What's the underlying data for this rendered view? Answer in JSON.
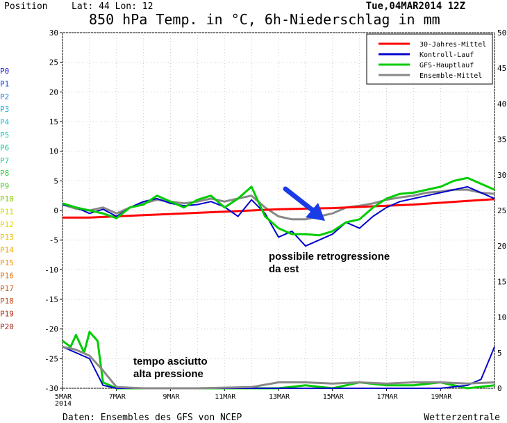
{
  "header": {
    "position_label": "Position",
    "lat_lon": "Lat: 44 Lon: 12",
    "run": "Tue,04MAR2014 12Z",
    "title": "850 hPa Temp. in °C, 6h-Niederschlag in mm"
  },
  "footer": {
    "source": "Daten: Ensembles des GFS von NCEP",
    "brand": "Wetterzentrale"
  },
  "annotations": {
    "retro_1": "possibile retrogressione",
    "retro_2": "da est",
    "dry_1": "tempo asciutto",
    "dry_2": "alta pressione"
  },
  "colors": {
    "climate": "#ff0000",
    "control": "#0000cc",
    "gfs_main": "#00cc00",
    "ensemble_mean": "#888888",
    "arrow": "#1a3ce6"
  },
  "chart_data": {
    "type": "line",
    "x_labels": [
      "5MAR",
      "7MAR",
      "9MAR",
      "11MAR",
      "13MAR",
      "15MAR",
      "17MAR",
      "19MAR"
    ],
    "x_sublabel": "2014",
    "x_range_days": [
      0,
      16
    ],
    "y_left_label_unit": "°C",
    "y_left_range": [
      -30,
      30
    ],
    "y_left_ticks": [
      30,
      25,
      20,
      15,
      10,
      5,
      0,
      -5,
      -10,
      -15,
      -20,
      -25,
      -30
    ],
    "y_right_range": [
      0,
      50
    ],
    "y_right_ticks": [
      50,
      45,
      40,
      35,
      30,
      25,
      20,
      15,
      10,
      5,
      0
    ],
    "member_labels": [
      "P0",
      "P1",
      "P2",
      "P3",
      "P4",
      "P5",
      "P6",
      "P7",
      "P8",
      "P9",
      "P10",
      "P11",
      "P12",
      "P13",
      "P14",
      "P15",
      "P16",
      "P17",
      "P18",
      "P19",
      "P20"
    ],
    "member_colors": [
      "#2020d0",
      "#2050e0",
      "#2080e8",
      "#20a8e0",
      "#20c0d8",
      "#20d0c0",
      "#20c8a0",
      "#20d080",
      "#30d040",
      "#50d020",
      "#80d000",
      "#d8d800",
      "#e8d000",
      "#f0c000",
      "#f0a800",
      "#f09000",
      "#e07820",
      "#d06020",
      "#c04818",
      "#b03010",
      "#a02010"
    ],
    "legend": [
      {
        "label": "30-Jahres-Mittel",
        "color": "#ff0000"
      },
      {
        "label": "Kontroll-Lauf",
        "color": "#0000cc"
      },
      {
        "label": "GFS-Hauptlauf",
        "color": "#00cc00"
      },
      {
        "label": "Ensemble-Mittel",
        "color": "#888888"
      }
    ],
    "series": [
      {
        "name": "30-Jahres-Mittel",
        "x": [
          0,
          1,
          2,
          3,
          4,
          5,
          6,
          7,
          8,
          9,
          10,
          11,
          12,
          13,
          14,
          15,
          16
        ],
        "y": [
          -1.2,
          -1.2,
          -1.0,
          -0.8,
          -0.6,
          -0.4,
          -0.2,
          0,
          0.2,
          0.3,
          0.4,
          0.6,
          0.8,
          1.0,
          1.3,
          1.6,
          1.9
        ]
      },
      {
        "name": "Kontroll-Lauf",
        "x": [
          0,
          0.5,
          1,
          1.5,
          2,
          2.5,
          3,
          3.5,
          4,
          4.5,
          5,
          5.5,
          6,
          6.5,
          7,
          7.5,
          8,
          8.5,
          9,
          9.5,
          10,
          10.5,
          11,
          11.5,
          12,
          12.5,
          13,
          13.5,
          14,
          14.5,
          15,
          15.5,
          16
        ],
        "y": [
          1.0,
          0.5,
          -0.5,
          0.2,
          -1.0,
          0.5,
          1.5,
          2.0,
          1.2,
          0.8,
          1.0,
          1.5,
          0.6,
          -1.0,
          1.8,
          -0.5,
          -4.5,
          -3.5,
          -6.0,
          -5.0,
          -4.0,
          -2.0,
          -3.0,
          -1.0,
          0.5,
          1.5,
          2.0,
          2.5,
          3.0,
          3.5,
          4.0,
          3.0,
          2.0
        ]
      },
      {
        "name": "GFS-Hauptlauf",
        "x": [
          0,
          0.5,
          1,
          1.5,
          2,
          2.5,
          3,
          3.5,
          4,
          4.5,
          5,
          5.5,
          6,
          6.5,
          7,
          7.5,
          8,
          8.5,
          9,
          9.5,
          10,
          10.5,
          11,
          11.5,
          12,
          12.5,
          13,
          13.5,
          14,
          14.5,
          15,
          15.5,
          16
        ],
        "y": [
          1.2,
          0.5,
          0.0,
          -0.5,
          -1.3,
          0.5,
          1.0,
          2.5,
          1.5,
          0.5,
          1.8,
          2.5,
          0.5,
          2.0,
          4.0,
          -1.0,
          -3.0,
          -4.0,
          -4.0,
          -4.2,
          -3.5,
          -2.0,
          -1.5,
          0.5,
          2.0,
          2.8,
          3.0,
          3.5,
          4.0,
          5.0,
          5.5,
          4.5,
          3.5
        ]
      },
      {
        "name": "Ensemble-Mittel",
        "x": [
          0,
          0.5,
          1,
          1.5,
          2,
          2.5,
          3,
          3.5,
          4,
          4.5,
          5,
          5.5,
          6,
          6.5,
          7,
          7.5,
          8,
          8.5,
          9,
          9.5,
          10,
          10.5,
          11,
          11.5,
          12,
          12.5,
          13,
          13.5,
          14,
          14.5,
          15,
          15.5,
          16
        ],
        "y": [
          1.0,
          0.3,
          0.0,
          0.5,
          -0.5,
          0.5,
          1.2,
          1.8,
          1.5,
          1.2,
          1.5,
          2.0,
          1.5,
          2.0,
          2.5,
          0.5,
          -1.0,
          -1.5,
          -1.5,
          -1.0,
          -0.5,
          0.5,
          0.8,
          1.2,
          1.8,
          2.2,
          2.5,
          3.0,
          3.2,
          3.5,
          3.5,
          3.0,
          2.8
        ]
      }
    ],
    "precip_series": [
      {
        "name": "GFS-Hauptlauf",
        "x": [
          0,
          0.3,
          0.5,
          0.8,
          1,
          1.3,
          1.5,
          2,
          3,
          5,
          8,
          9,
          10,
          11,
          12,
          13,
          14,
          15,
          16
        ],
        "y": [
          -22.0,
          -23.0,
          -21.0,
          -24.0,
          -20.5,
          -22.0,
          -29.0,
          -30,
          -30,
          -30,
          -30,
          -29.5,
          -30,
          -29.0,
          -29.5,
          -29.5,
          -29.0,
          -30,
          -29.5
        ]
      },
      {
        "name": "Kontroll-Lauf",
        "x": [
          0,
          1,
          1.5,
          2,
          5,
          8,
          10,
          12,
          14,
          15,
          15.5,
          16
        ],
        "y": [
          -23.0,
          -25.0,
          -29.5,
          -30,
          -30,
          -30,
          -30,
          -30,
          -30,
          -29.5,
          -28.5,
          -23.0
        ]
      },
      {
        "name": "Ensemble-Mittel",
        "x": [
          0,
          0.5,
          1,
          1.5,
          2,
          3,
          5,
          7,
          8,
          9,
          10,
          11,
          12,
          13,
          14,
          15,
          16
        ],
        "y": [
          -23.0,
          -23.5,
          -24.5,
          -27.0,
          -29.8,
          -30,
          -30,
          -29.8,
          -29.0,
          -29.0,
          -29.2,
          -29.0,
          -29.2,
          -29.0,
          -29.0,
          -29.2,
          -29.0
        ]
      }
    ],
    "grid": true
  }
}
